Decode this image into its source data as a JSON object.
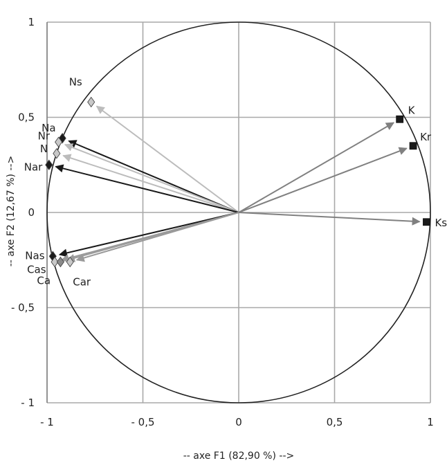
{
  "chart_data": {
    "type": "scatter",
    "subtype": "correlation-circle",
    "title": "",
    "xlabel": "-- axe F1 (82,90 %) -->",
    "ylabel": "-- axe F2 (12,67 %) -->",
    "xlim": [
      -1,
      1
    ],
    "ylim": [
      -1,
      1
    ],
    "x_ticks": [
      -1,
      -0.5,
      0,
      0.5,
      1
    ],
    "x_tick_labels": [
      "- 1",
      "- 0,5",
      "0",
      "0,5",
      "1"
    ],
    "y_ticks": [
      1,
      0.5,
      0,
      -0.5,
      -1
    ],
    "y_tick_labels": [
      "1",
      "0,5",
      "0",
      "- 0,5",
      "- 1"
    ],
    "grid": true,
    "unit_circle": true,
    "colors": {
      "black": "#1a1a1a",
      "dark_gray": "#707070",
      "gray": "#9a9a9a",
      "light_gray": "#bcbcbc",
      "grid": "#a8a8a8"
    },
    "points": [
      {
        "name": "Ns",
        "x": -0.77,
        "y": 0.58,
        "marker": "diamond",
        "fill": "#c8c8c8",
        "arrow": "#bcbcbc"
      },
      {
        "name": "Na",
        "x": -0.92,
        "y": 0.39,
        "marker": "diamond",
        "fill": "#1a1a1a",
        "arrow": "#1a1a1a"
      },
      {
        "name": "Nr",
        "x": -0.94,
        "y": 0.37,
        "marker": "diamond",
        "fill": "#c8c8c8",
        "arrow": "#bcbcbc"
      },
      {
        "name": "N",
        "x": -0.95,
        "y": 0.31,
        "marker": "diamond",
        "fill": "#c8c8c8",
        "arrow": "#bcbcbc"
      },
      {
        "name": "Nar",
        "x": -0.99,
        "y": 0.25,
        "marker": "diamond",
        "fill": "#1a1a1a",
        "arrow": "#1a1a1a"
      },
      {
        "name": "K",
        "x": 0.84,
        "y": 0.49,
        "marker": "square",
        "fill": "#1a1a1a",
        "arrow": "#808080"
      },
      {
        "name": "Kr",
        "x": 0.91,
        "y": 0.35,
        "marker": "square",
        "fill": "#1a1a1a",
        "arrow": "#808080"
      },
      {
        "name": "Ks",
        "x": 0.98,
        "y": -0.05,
        "marker": "square",
        "fill": "#1a1a1a",
        "arrow": "#808080"
      },
      {
        "name": "Nas",
        "x": -0.97,
        "y": -0.23,
        "marker": "diamond",
        "fill": "#1a1a1a",
        "arrow": "#1a1a1a"
      },
      {
        "name": "Cas",
        "x": -0.96,
        "y": -0.26,
        "marker": "diamond",
        "fill": "#c8c8c8",
        "arrow": "#9a9a9a"
      },
      {
        "name": "Ca",
        "x": -0.93,
        "y": -0.26,
        "marker": "diamond",
        "fill": "#8a8a8a",
        "arrow": "#9a9a9a"
      },
      {
        "name": "Car",
        "x": -0.88,
        "y": -0.26,
        "marker": "diamond",
        "fill": "#c8c8c8",
        "arrow": "#9a9a9a"
      }
    ]
  }
}
